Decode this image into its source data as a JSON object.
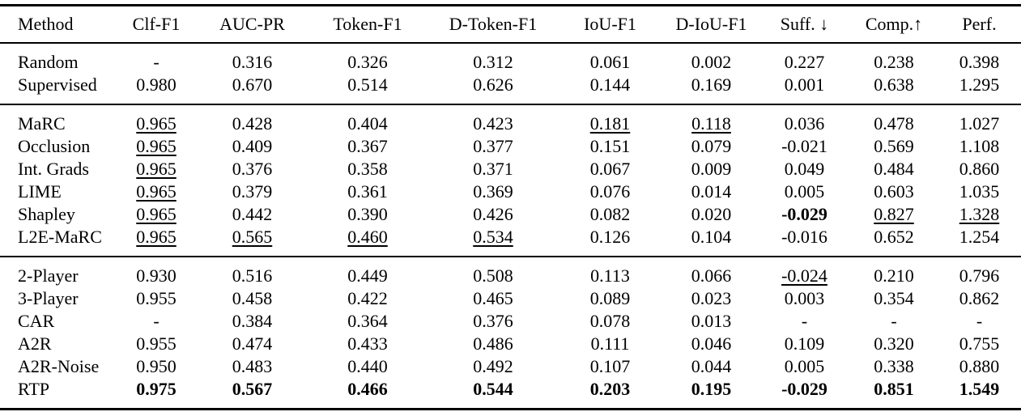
{
  "page": {
    "background": "#ffffff",
    "text_color": "#000000",
    "rule_color": "#000000"
  },
  "table": {
    "style_legend": {
      "u": "underlined (second-best)",
      "b": "bold (best)"
    },
    "columns": [
      {
        "id": "method",
        "label": "Method",
        "align": "left"
      },
      {
        "id": "clf-f1",
        "label": "Clf-F1",
        "align": "center"
      },
      {
        "id": "auc-pr",
        "label": "AUC-PR",
        "align": "center"
      },
      {
        "id": "token-f1",
        "label": "Token-F1",
        "align": "center"
      },
      {
        "id": "d-token-f1",
        "label": "D-Token-F1",
        "align": "center"
      },
      {
        "id": "iou-f1",
        "label": "IoU-F1",
        "align": "center"
      },
      {
        "id": "d-iou-f1",
        "label": "D-IoU-F1",
        "align": "center"
      },
      {
        "id": "suff",
        "label": "Suff. ↓",
        "align": "center"
      },
      {
        "id": "comp",
        "label": "Comp.↑",
        "align": "center"
      },
      {
        "id": "perf",
        "label": "Perf.",
        "align": "center"
      }
    ],
    "groups": [
      {
        "rows": [
          {
            "method": "Random",
            "cells": [
              {
                "t": "-"
              },
              {
                "t": "0.316"
              },
              {
                "t": "0.326"
              },
              {
                "t": "0.312"
              },
              {
                "t": "0.061"
              },
              {
                "t": "0.002"
              },
              {
                "t": "0.227"
              },
              {
                "t": "0.238"
              },
              {
                "t": "0.398"
              }
            ]
          },
          {
            "method": "Supervised",
            "cells": [
              {
                "t": "0.980"
              },
              {
                "t": "0.670"
              },
              {
                "t": "0.514"
              },
              {
                "t": "0.626"
              },
              {
                "t": "0.144"
              },
              {
                "t": "0.169"
              },
              {
                "t": "0.001"
              },
              {
                "t": "0.638"
              },
              {
                "t": "1.295"
              }
            ]
          }
        ]
      },
      {
        "rows": [
          {
            "method": "MaRC",
            "cells": [
              {
                "t": "0.965",
                "s": "u"
              },
              {
                "t": "0.428"
              },
              {
                "t": "0.404"
              },
              {
                "t": "0.423"
              },
              {
                "t": "0.181",
                "s": "u"
              },
              {
                "t": "0.118",
                "s": "u"
              },
              {
                "t": "0.036"
              },
              {
                "t": "0.478"
              },
              {
                "t": "1.027"
              }
            ]
          },
          {
            "method": "Occlusion",
            "cells": [
              {
                "t": "0.965",
                "s": "u"
              },
              {
                "t": "0.409"
              },
              {
                "t": "0.367"
              },
              {
                "t": "0.377"
              },
              {
                "t": "0.151"
              },
              {
                "t": "0.079"
              },
              {
                "t": "-0.021"
              },
              {
                "t": "0.569"
              },
              {
                "t": "1.108"
              }
            ]
          },
          {
            "method": "Int. Grads",
            "cells": [
              {
                "t": "0.965",
                "s": "u"
              },
              {
                "t": "0.376"
              },
              {
                "t": "0.358"
              },
              {
                "t": "0.371"
              },
              {
                "t": "0.067"
              },
              {
                "t": "0.009"
              },
              {
                "t": "0.049"
              },
              {
                "t": "0.484"
              },
              {
                "t": "0.860"
              }
            ]
          },
          {
            "method": "LIME",
            "cells": [
              {
                "t": "0.965",
                "s": "u"
              },
              {
                "t": "0.379"
              },
              {
                "t": "0.361"
              },
              {
                "t": "0.369"
              },
              {
                "t": "0.076"
              },
              {
                "t": "0.014"
              },
              {
                "t": "0.005"
              },
              {
                "t": "0.603"
              },
              {
                "t": "1.035"
              }
            ]
          },
          {
            "method": "Shapley",
            "cells": [
              {
                "t": "0.965",
                "s": "u"
              },
              {
                "t": "0.442"
              },
              {
                "t": "0.390"
              },
              {
                "t": "0.426"
              },
              {
                "t": "0.082"
              },
              {
                "t": "0.020"
              },
              {
                "t": "-0.029",
                "s": "b"
              },
              {
                "t": "0.827",
                "s": "u"
              },
              {
                "t": "1.328",
                "s": "u"
              }
            ]
          },
          {
            "method": "L2E-MaRC",
            "cells": [
              {
                "t": "0.965",
                "s": "u"
              },
              {
                "t": "0.565",
                "s": "u"
              },
              {
                "t": "0.460",
                "s": "u"
              },
              {
                "t": "0.534",
                "s": "u"
              },
              {
                "t": "0.126"
              },
              {
                "t": "0.104"
              },
              {
                "t": "-0.016"
              },
              {
                "t": "0.652"
              },
              {
                "t": "1.254"
              }
            ]
          }
        ]
      },
      {
        "rows": [
          {
            "method": "2-Player",
            "cells": [
              {
                "t": "0.930"
              },
              {
                "t": "0.516"
              },
              {
                "t": "0.449"
              },
              {
                "t": "0.508"
              },
              {
                "t": "0.113"
              },
              {
                "t": "0.066"
              },
              {
                "t": "-0.024",
                "s": "u"
              },
              {
                "t": "0.210"
              },
              {
                "t": "0.796"
              }
            ]
          },
          {
            "method": "3-Player",
            "cells": [
              {
                "t": "0.955"
              },
              {
                "t": "0.458"
              },
              {
                "t": "0.422"
              },
              {
                "t": "0.465"
              },
              {
                "t": "0.089"
              },
              {
                "t": "0.023"
              },
              {
                "t": "0.003"
              },
              {
                "t": "0.354"
              },
              {
                "t": "0.862"
              }
            ]
          },
          {
            "method": "CAR",
            "cells": [
              {
                "t": "-"
              },
              {
                "t": "0.384"
              },
              {
                "t": "0.364"
              },
              {
                "t": "0.376"
              },
              {
                "t": "0.078"
              },
              {
                "t": "0.013"
              },
              {
                "t": "-"
              },
              {
                "t": "-"
              },
              {
                "t": "-"
              }
            ]
          },
          {
            "method": "A2R",
            "cells": [
              {
                "t": "0.955"
              },
              {
                "t": "0.474"
              },
              {
                "t": "0.433"
              },
              {
                "t": "0.486"
              },
              {
                "t": "0.111"
              },
              {
                "t": "0.046"
              },
              {
                "t": "0.109"
              },
              {
                "t": "0.320"
              },
              {
                "t": "0.755"
              }
            ]
          },
          {
            "method": "A2R-Noise",
            "cells": [
              {
                "t": "0.950"
              },
              {
                "t": "0.483"
              },
              {
                "t": "0.440"
              },
              {
                "t": "0.492"
              },
              {
                "t": "0.107"
              },
              {
                "t": "0.044"
              },
              {
                "t": "0.005"
              },
              {
                "t": "0.338"
              },
              {
                "t": "0.880"
              }
            ]
          },
          {
            "method": "RTP",
            "cells": [
              {
                "t": "0.975",
                "s": "b"
              },
              {
                "t": "0.567",
                "s": "b"
              },
              {
                "t": "0.466",
                "s": "b"
              },
              {
                "t": "0.544",
                "s": "b"
              },
              {
                "t": "0.203",
                "s": "b"
              },
              {
                "t": "0.195",
                "s": "b"
              },
              {
                "t": "-0.029",
                "s": "b"
              },
              {
                "t": "0.851",
                "s": "b"
              },
              {
                "t": "1.549",
                "s": "b"
              }
            ]
          }
        ]
      }
    ]
  }
}
